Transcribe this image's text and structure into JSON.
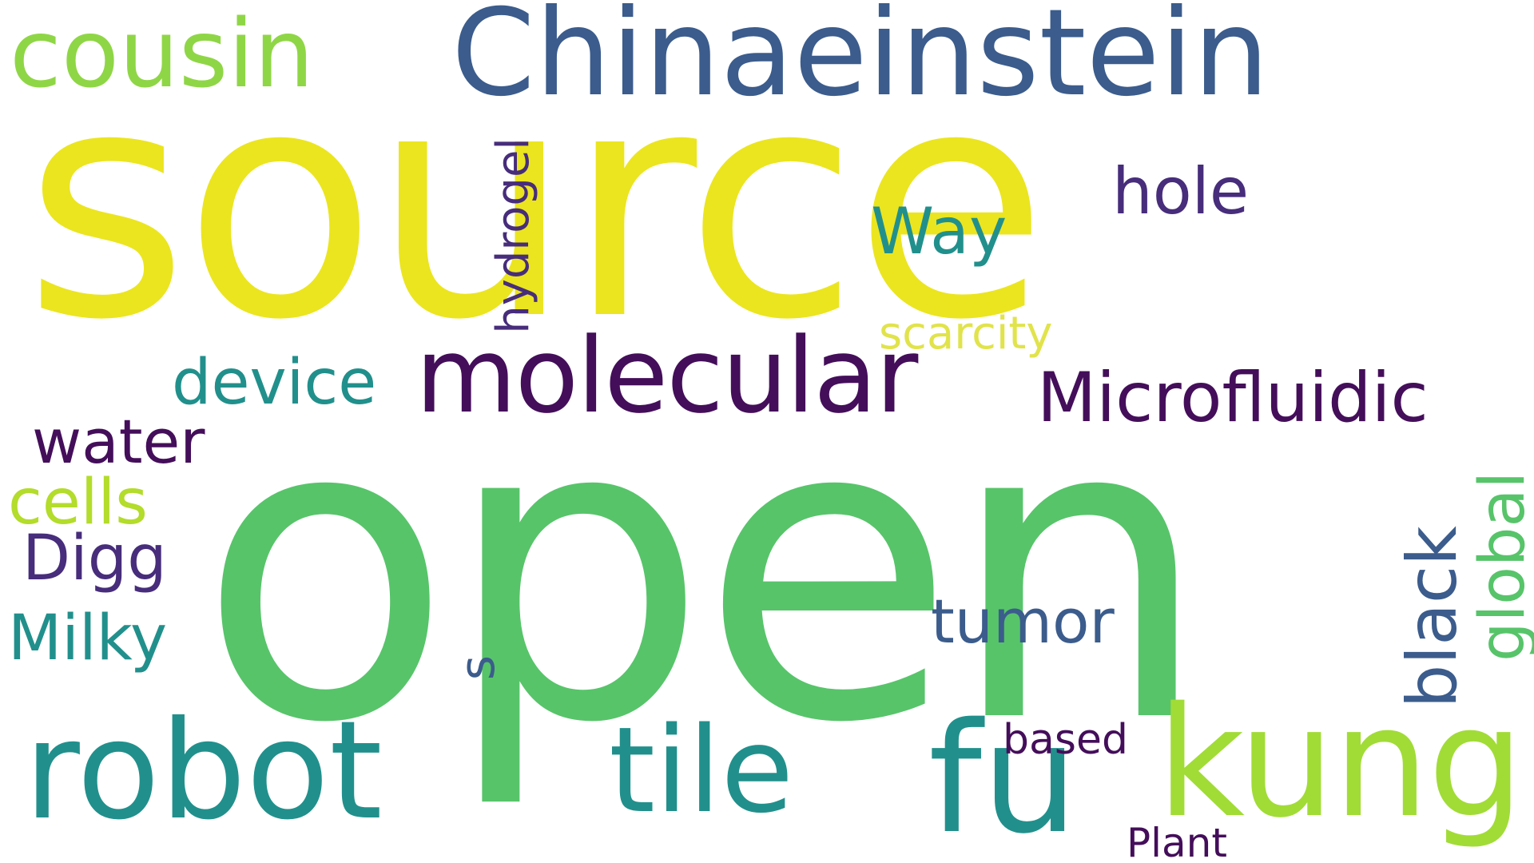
{
  "palette": {
    "yellow": "#ebe51f",
    "green": "#57c46a",
    "light_green": "#8fd646",
    "lime": "#b3dc2b",
    "teal": "#21908c",
    "blue": "#3b5c8c",
    "dark_purple": "#440e5a",
    "purple": "#472d7b",
    "light_yellow": "#e1e34b"
  },
  "words": {
    "source": "source",
    "open": "open",
    "chinaeinstein": "Chinaeinstein",
    "cousin": "cousin",
    "molecular": "molecular",
    "microfluidic": "Microfluidic",
    "kung": "kung",
    "fu": "fu",
    "robot": "robot",
    "tile": "tile",
    "way": "Way",
    "hole": "hole",
    "hydrogel": "hydrogel",
    "scarcity": "scarcity",
    "device": "device",
    "water": "water",
    "cells": "cells",
    "digg": "Digg",
    "milky": "Milky",
    "tumor": "tumor",
    "s": "s",
    "black": "black",
    "global": "global",
    "based": "based",
    "plant": "Plant"
  }
}
